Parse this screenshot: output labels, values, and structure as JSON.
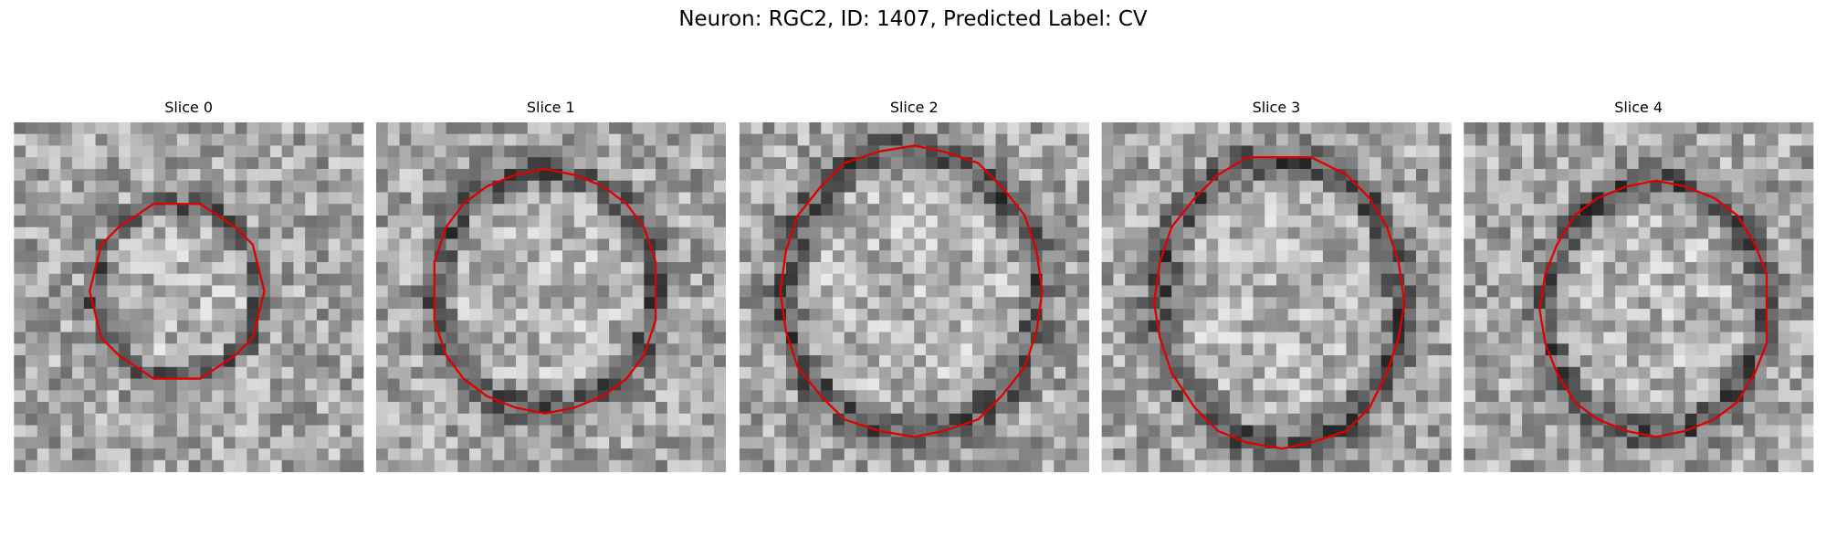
{
  "title": "Neuron: RGC2, ID: 1407, Predicted Label: CV",
  "panels": [
    {
      "title": "Slice 0"
    },
    {
      "title": "Slice 1"
    },
    {
      "title": "Slice 2"
    },
    {
      "title": "Slice 3"
    },
    {
      "title": "Slice 4"
    }
  ]
}
